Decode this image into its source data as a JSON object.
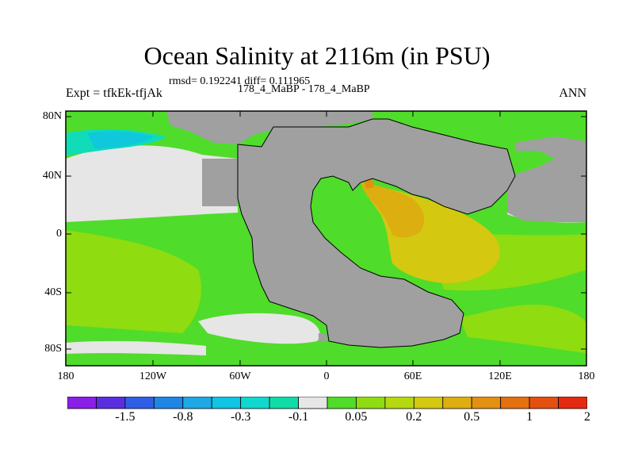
{
  "title": "Ocean Salinity at 2116m (in PSU)",
  "stats_line": "rmsd= 0.192241 diff= 0.111965",
  "experiment_label": "Expt = tfkEk-tfjAk",
  "subtitle": "178_4_MaBP - 178_4_MaBP",
  "season": "ANN",
  "lat_labels": [
    "80N",
    "40N",
    "0",
    "40S",
    "80S"
  ],
  "lon_labels": [
    "180",
    "120W",
    "60W",
    "0",
    "60E",
    "120E",
    "180"
  ],
  "colorbar": {
    "colors": [
      "#8a1fe8",
      "#5a2ee0",
      "#2f5fe6",
      "#1f86e6",
      "#1fa8e6",
      "#10c4e4",
      "#10d8cf",
      "#10dca8",
      "#e6e6e6",
      "#50dc2a",
      "#8fdc10",
      "#b6d810",
      "#d4c810",
      "#dcae10",
      "#e49010",
      "#e47010",
      "#e45010",
      "#e42a10"
    ],
    "tick_labels": [
      "-1.5",
      "-0.8",
      "-0.3",
      "-0.1",
      "0.05",
      "0.2",
      "0.5",
      "1",
      "2"
    ]
  },
  "map_colors": {
    "land": "#a0a0a0",
    "near_zero": "#e6e6e6",
    "green": "#50dc2a",
    "light_green": "#8fdc10",
    "cyan": "#10c8dc",
    "teal": "#10dcb8",
    "yellow": "#d4c810",
    "orange": "#dcae10",
    "dark_orange": "#e49010"
  }
}
